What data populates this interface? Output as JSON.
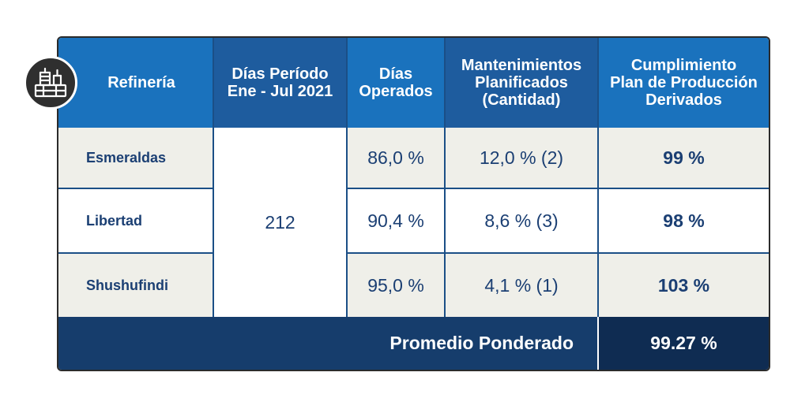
{
  "table": {
    "headers": {
      "refineria": "Refinería",
      "dias_periodo": [
        "Días Período",
        "Ene - Jul 2021"
      ],
      "dias_operados": [
        "Días",
        "Operados"
      ],
      "mantenimientos": [
        "Mantenimientos",
        "Planificados",
        "(Cantidad)"
      ],
      "cumplimiento": [
        "Cumplimiento",
        "Plan de Producción",
        "Derivados"
      ]
    },
    "dias_periodo_value": "212",
    "rows": [
      {
        "refineria": "Esmeraldas",
        "dias_operados": "86,0 %",
        "mantenimientos": "12,0 % (2)",
        "cumplimiento": "99 %"
      },
      {
        "refineria": "Libertad",
        "dias_operados": "90,4 %",
        "mantenimientos": "8,6 % (3)",
        "cumplimiento": "98 %"
      },
      {
        "refineria": "Shushufindi",
        "dias_operados": "95,0 %",
        "mantenimientos": "4,1 % (1)",
        "cumplimiento": "103 %"
      }
    ],
    "footer": {
      "label": "Promedio Ponderado",
      "value": "99.27 %"
    }
  },
  "icon": "refinery-icon",
  "colors": {
    "header_blue": "#1a72bd",
    "header_dark_blue": "#1e5c9e",
    "footer_navy": "#163d6c",
    "text_navy": "#1b3f73",
    "row_grey": "#efefe9"
  }
}
